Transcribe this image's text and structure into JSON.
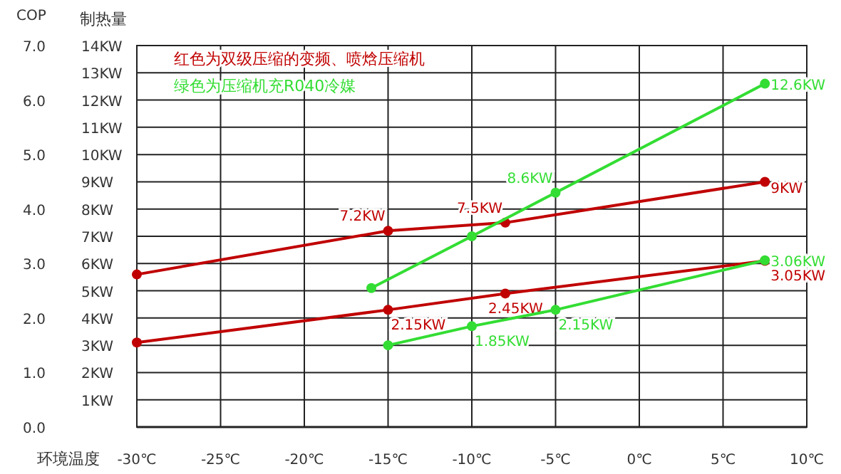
{
  "chart_data": {
    "type": "line",
    "xlabel": "环境温度",
    "ylabel": "制热量",
    "y2label": "COP",
    "annotations": [
      "红色为双级压缩的变频、喷焓压缩机",
      "绿色为压缩机充R040冷媒"
    ],
    "xlim": [
      -30,
      10
    ],
    "xticks": [
      {
        "value": -30,
        "label": "-30℃"
      },
      {
        "value": -25,
        "label": "-25℃"
      },
      {
        "value": -20,
        "label": "-20℃"
      },
      {
        "value": -15,
        "label": "-15℃"
      },
      {
        "value": -10,
        "label": "-10℃"
      },
      {
        "value": -5,
        "label": "-5℃"
      },
      {
        "value": 0,
        "label": "0℃"
      },
      {
        "value": 5,
        "label": "5℃"
      },
      {
        "value": 10,
        "label": "10℃"
      }
    ],
    "ylim": [
      0,
      14
    ],
    "yticks": [
      {
        "value": 0,
        "label": null
      },
      {
        "value": 1,
        "label": "1KW"
      },
      {
        "value": 2,
        "label": "2KW"
      },
      {
        "value": 3,
        "label": "3KW"
      },
      {
        "value": 4,
        "label": "4KW"
      },
      {
        "value": 5,
        "label": "5KW"
      },
      {
        "value": 6,
        "label": "6KW"
      },
      {
        "value": 7,
        "label": "7KW"
      },
      {
        "value": 8,
        "label": "8KW"
      },
      {
        "value": 9,
        "label": "9KW"
      },
      {
        "value": 10,
        "label": "10KW"
      },
      {
        "value": 11,
        "label": "11KW"
      },
      {
        "value": 12,
        "label": "12KW"
      },
      {
        "value": 13,
        "label": "13KW"
      },
      {
        "value": 14,
        "label": "14KW"
      }
    ],
    "y2lim": [
      0,
      7
    ],
    "y2ticks": [
      {
        "value": 0,
        "label": "0.0"
      },
      {
        "value": 1,
        "label": "1.0"
      },
      {
        "value": 2,
        "label": "2.0"
      },
      {
        "value": 3,
        "label": "3.0"
      },
      {
        "value": 4,
        "label": "4.0"
      },
      {
        "value": 5,
        "label": "5.0"
      },
      {
        "value": 6,
        "label": "6.0"
      },
      {
        "value": 7,
        "label": "7.0"
      }
    ],
    "grid": true,
    "marker": "circle",
    "line_style": "solid",
    "series": [
      {
        "color": "#c00000",
        "x": [
          -30,
          -15,
          -8,
          7.5
        ],
        "values": [
          5.6,
          7.2,
          7.5,
          9
        ],
        "value_labels": [
          null,
          "7.2KW",
          "7.5KW",
          "9KW"
        ]
      },
      {
        "color": "#c00000",
        "axis": "y2",
        "x": [
          -30,
          -15,
          -8,
          7.5
        ],
        "values": [
          1.55,
          2.15,
          2.45,
          3.05
        ],
        "value_labels": [
          null,
          "2.15KW",
          "2.45KW",
          "3.05KW"
        ]
      },
      {
        "color": "#33dd33",
        "x": [
          -16,
          -10,
          -5,
          7.5
        ],
        "values": [
          5.1,
          7.0,
          8.6,
          12.6
        ],
        "value_labels": [
          null,
          null,
          "8.6KW",
          "12.6KW"
        ]
      },
      {
        "color": "#33dd33",
        "axis": "y2",
        "x": [
          -15,
          -10,
          -5,
          7.5
        ],
        "values": [
          1.5,
          1.85,
          2.15,
          3.06
        ],
        "value_labels": [
          null,
          "1.85KW",
          "2.15KW",
          "3.06KW"
        ]
      }
    ]
  }
}
